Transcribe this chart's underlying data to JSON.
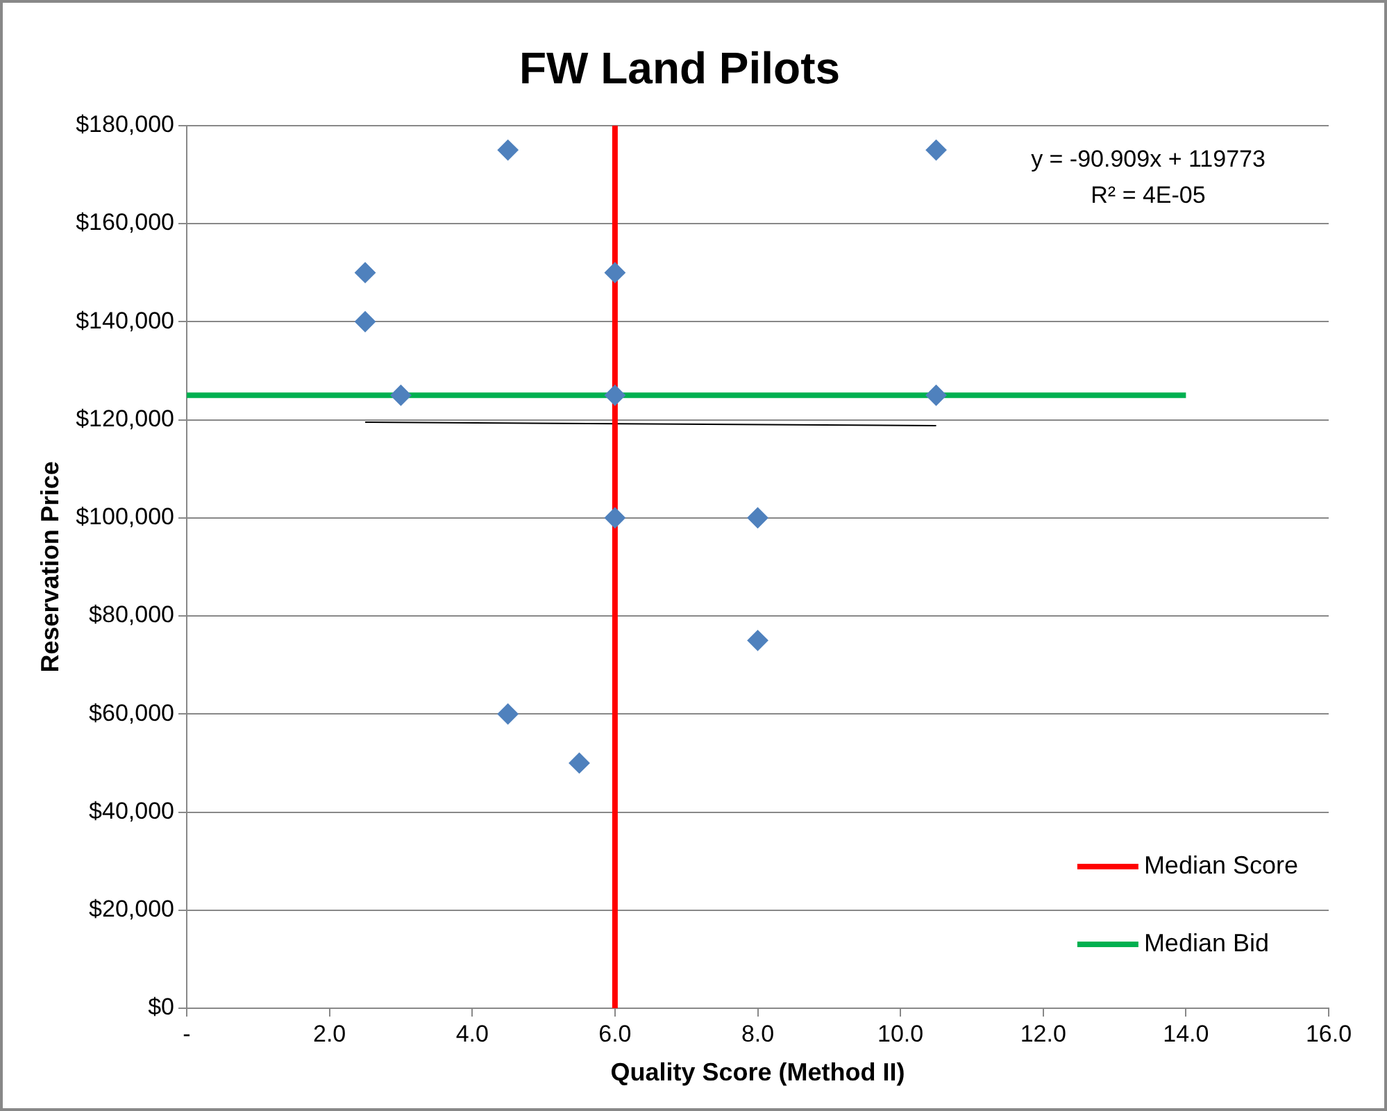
{
  "chart_data": {
    "type": "scatter",
    "title": "FW Land Pilots",
    "xlabel": "Quality Score (Method II)",
    "ylabel": "Reservation Price",
    "xlim": [
      0,
      16
    ],
    "xticks": [
      {
        "value": 0,
        "label": "-"
      },
      {
        "value": 2,
        "label": "2.0"
      },
      {
        "value": 4,
        "label": "4.0"
      },
      {
        "value": 6,
        "label": "6.0"
      },
      {
        "value": 8,
        "label": "8.0"
      },
      {
        "value": 10,
        "label": "10.0"
      },
      {
        "value": 12,
        "label": "12.0"
      },
      {
        "value": 14,
        "label": "14.0"
      },
      {
        "value": 16,
        "label": "16.0"
      }
    ],
    "ylim": [
      0,
      180000
    ],
    "yticks": [
      {
        "value": 0,
        "label": "$0"
      },
      {
        "value": 20000,
        "label": "$20,000"
      },
      {
        "value": 40000,
        "label": "$40,000"
      },
      {
        "value": 60000,
        "label": "$60,000"
      },
      {
        "value": 80000,
        "label": "$80,000"
      },
      {
        "value": 100000,
        "label": "$100,000"
      },
      {
        "value": 120000,
        "label": "$120,000"
      },
      {
        "value": 140000,
        "label": "$140,000"
      },
      {
        "value": 160000,
        "label": "$160,000"
      },
      {
        "value": 180000,
        "label": "$180,000"
      }
    ],
    "grid": "y",
    "legend": "bottom right",
    "marker": "diamond",
    "series": [
      {
        "type": "scatter",
        "color": "#4f81bd",
        "x": [
          2.5,
          2.5,
          3,
          4.5,
          4.5,
          5.5,
          6,
          6,
          6,
          8,
          8,
          10.5,
          10.5
        ],
        "values": [
          150000,
          140000,
          125000,
          175000,
          60000,
          50000,
          150000,
          125000,
          100000,
          100000,
          75000,
          175000,
          125000
        ]
      },
      {
        "type": "line",
        "name": "Median Score",
        "color": "#ff0000",
        "x": [
          6,
          6
        ],
        "values": [
          0,
          180000
        ],
        "marker": "none"
      },
      {
        "type": "line",
        "name": "Median Bid",
        "color": "#00b050",
        "x": [
          0,
          14
        ],
        "values": [
          125000,
          125000
        ],
        "marker": "none"
      },
      {
        "type": "line",
        "color": "#000000",
        "x": [
          2.5,
          10.5
        ],
        "values": [
          119500,
          118800
        ],
        "marker": "none"
      }
    ],
    "annotations": [
      "y = -90.909x + 119773",
      "R² = 4E-05"
    ]
  }
}
